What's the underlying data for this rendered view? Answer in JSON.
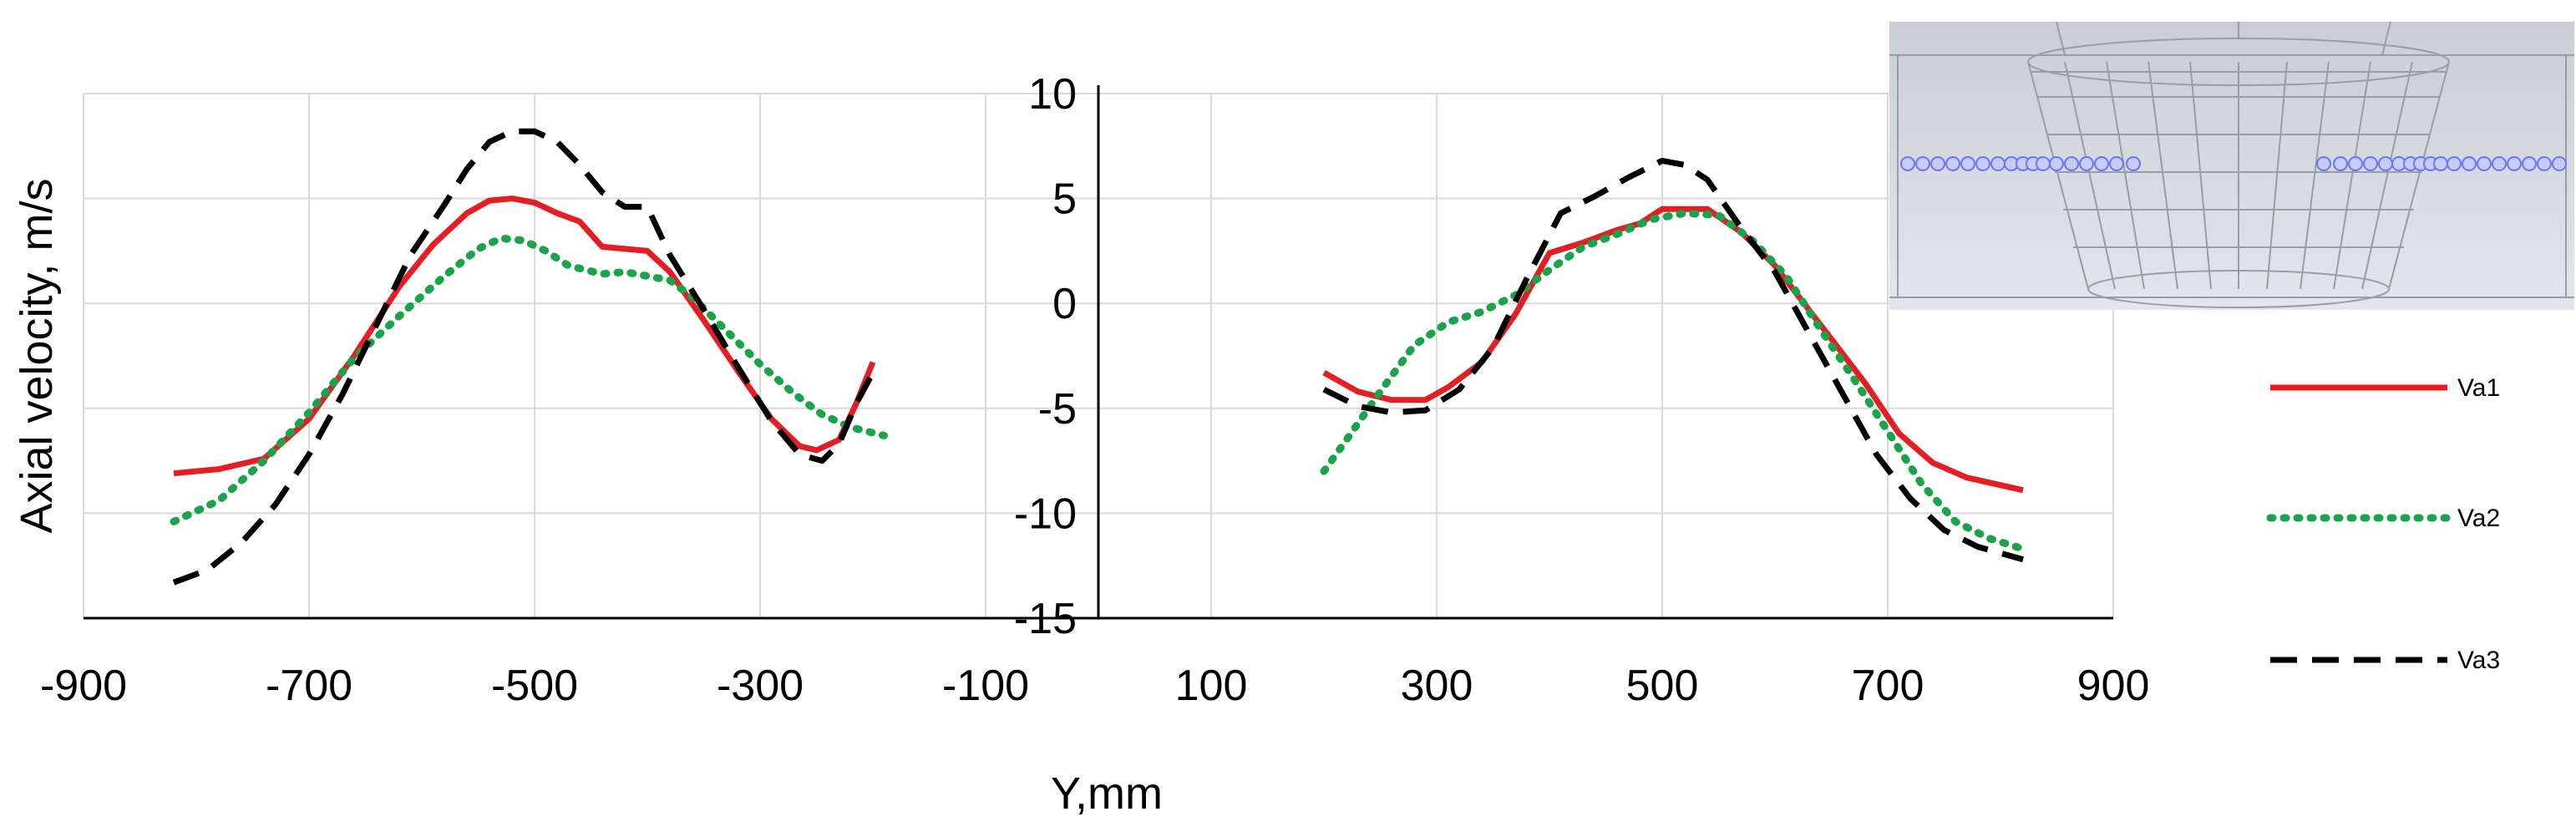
{
  "chart_data": {
    "type": "line",
    "xlabel": "Y,mm",
    "ylabel": "Axial velocity, m/s",
    "xlim": [
      -900,
      900
    ],
    "ylim": [
      -15,
      10
    ],
    "x_tick_labels": [
      "-900",
      "-700",
      "-500",
      "-300",
      "-100",
      "100",
      "300",
      "500",
      "700",
      "900"
    ],
    "y_tick_labels": [
      "10",
      "5",
      "0",
      "-5",
      "-10",
      "-15"
    ],
    "grid": true,
    "legend_position": "right",
    "series": [
      {
        "name": "Va1",
        "color": "#e31e24",
        "style": "solid",
        "segments": [
          [
            [
              -820,
              -8.1
            ],
            [
              -780,
              -7.9
            ],
            [
              -740,
              -7.4
            ],
            [
              -700,
              -5.5
            ],
            [
              -660,
              -2.5
            ],
            [
              -620,
              0.8
            ],
            [
              -590,
              2.8
            ],
            [
              -560,
              4.3
            ],
            [
              -540,
              4.9
            ],
            [
              -520,
              5.0
            ],
            [
              -500,
              4.8
            ],
            [
              -480,
              4.3
            ],
            [
              -460,
              3.9
            ],
            [
              -440,
              2.7
            ],
            [
              -420,
              2.6
            ],
            [
              -400,
              2.5
            ],
            [
              -380,
              1.5
            ],
            [
              -350,
              -0.8
            ],
            [
              -320,
              -3.2
            ],
            [
              -290,
              -5.5
            ],
            [
              -265,
              -6.8
            ],
            [
              -250,
              -7.0
            ],
            [
              -230,
              -6.5
            ],
            [
              -215,
              -4.8
            ],
            [
              -200,
              -2.8
            ]
          ],
          [
            [
              200,
              -3.3
            ],
            [
              230,
              -4.2
            ],
            [
              260,
              -4.6
            ],
            [
              290,
              -4.6
            ],
            [
              310,
              -4.0
            ],
            [
              340,
              -2.8
            ],
            [
              370,
              -0.5
            ],
            [
              400,
              2.4
            ],
            [
              430,
              2.9
            ],
            [
              460,
              3.5
            ],
            [
              480,
              3.8
            ],
            [
              500,
              4.5
            ],
            [
              520,
              4.5
            ],
            [
              540,
              4.5
            ],
            [
              570,
              3.4
            ],
            [
              600,
              1.8
            ],
            [
              640,
              -1.0
            ],
            [
              680,
              -3.8
            ],
            [
              710,
              -6.2
            ],
            [
              740,
              -7.6
            ],
            [
              770,
              -8.3
            ],
            [
              820,
              -8.9
            ]
          ]
        ]
      },
      {
        "name": "Va2",
        "color": "#1aa34a",
        "style": "dotted",
        "segments": [
          [
            [
              -820,
              -10.4
            ],
            [
              -780,
              -9.4
            ],
            [
              -740,
              -7.5
            ],
            [
              -700,
              -5.2
            ],
            [
              -660,
              -2.6
            ],
            [
              -620,
              -0.6
            ],
            [
              -580,
              1.3
            ],
            [
              -550,
              2.6
            ],
            [
              -530,
              3.1
            ],
            [
              -510,
              3.0
            ],
            [
              -490,
              2.5
            ],
            [
              -470,
              1.8
            ],
            [
              -440,
              1.4
            ],
            [
              -420,
              1.5
            ],
            [
              -400,
              1.3
            ],
            [
              -380,
              1.1
            ],
            [
              -360,
              0.3
            ],
            [
              -330,
              -1.3
            ],
            [
              -300,
              -2.9
            ],
            [
              -270,
              -4.3
            ],
            [
              -245,
              -5.3
            ],
            [
              -220,
              -5.9
            ],
            [
              -190,
              -6.3
            ]
          ],
          [
            [
              200,
              -8.0
            ],
            [
              220,
              -6.5
            ],
            [
              250,
              -4.2
            ],
            [
              280,
              -2.0
            ],
            [
              310,
              -0.9
            ],
            [
              340,
              -0.4
            ],
            [
              370,
              0.4
            ],
            [
              400,
              1.6
            ],
            [
              430,
              2.7
            ],
            [
              460,
              3.3
            ],
            [
              490,
              4.0
            ],
            [
              520,
              4.3
            ],
            [
              550,
              4.2
            ],
            [
              580,
              3.0
            ],
            [
              610,
              1.3
            ],
            [
              640,
              -1.2
            ],
            [
              670,
              -3.6
            ],
            [
              700,
              -6.1
            ],
            [
              730,
              -8.6
            ],
            [
              760,
              -10.4
            ],
            [
              790,
              -11.2
            ],
            [
              820,
              -11.7
            ]
          ]
        ]
      },
      {
        "name": "Va3",
        "color": "#000000",
        "style": "dashed",
        "segments": [
          [
            [
              -820,
              -13.3
            ],
            [
              -790,
              -12.7
            ],
            [
              -760,
              -11.4
            ],
            [
              -730,
              -9.6
            ],
            [
              -700,
              -7.2
            ],
            [
              -670,
              -4.3
            ],
            [
              -640,
              -1.0
            ],
            [
              -610,
              2.3
            ],
            [
              -580,
              4.7
            ],
            [
              -560,
              6.4
            ],
            [
              -540,
              7.7
            ],
            [
              -520,
              8.2
            ],
            [
              -500,
              8.2
            ],
            [
              -480,
              7.7
            ],
            [
              -460,
              6.6
            ],
            [
              -440,
              5.3
            ],
            [
              -420,
              4.6
            ],
            [
              -400,
              4.6
            ],
            [
              -380,
              2.3
            ],
            [
              -350,
              -0.3
            ],
            [
              -320,
              -3.0
            ],
            [
              -290,
              -5.6
            ],
            [
              -265,
              -7.2
            ],
            [
              -245,
              -7.5
            ],
            [
              -230,
              -6.7
            ],
            [
              -215,
              -4.8
            ],
            [
              -200,
              -3.3
            ]
          ],
          [
            [
              200,
              -4.1
            ],
            [
              230,
              -4.9
            ],
            [
              260,
              -5.2
            ],
            [
              290,
              -5.1
            ],
            [
              320,
              -4.1
            ],
            [
              350,
              -2.1
            ],
            [
              380,
              1.2
            ],
            [
              410,
              4.3
            ],
            [
              440,
              5.1
            ],
            [
              470,
              6.0
            ],
            [
              500,
              6.8
            ],
            [
              520,
              6.6
            ],
            [
              540,
              5.9
            ],
            [
              570,
              3.6
            ],
            [
              600,
              1.5
            ],
            [
              630,
              -1.4
            ],
            [
              660,
              -4.3
            ],
            [
              690,
              -7.2
            ],
            [
              720,
              -9.3
            ],
            [
              750,
              -10.8
            ],
            [
              780,
              -11.6
            ],
            [
              820,
              -12.2
            ]
          ]
        ]
      }
    ]
  },
  "inset": {
    "icon": "cage-model-image",
    "background_color": "#d4d8de",
    "frame_color": "#9a9ea4",
    "probe_color": "#6a74ff"
  }
}
